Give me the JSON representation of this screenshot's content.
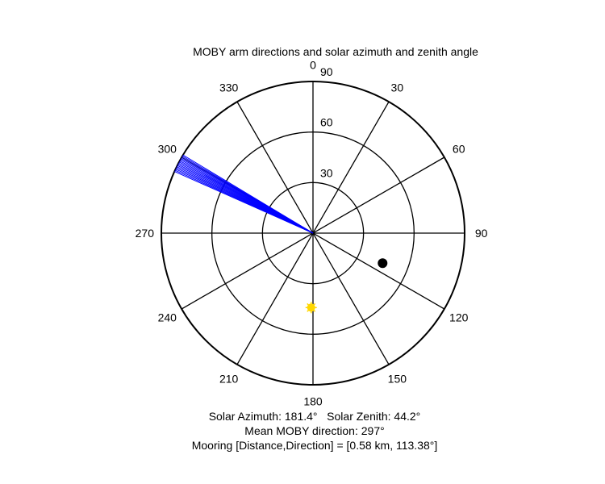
{
  "chart_data": {
    "type": "polar",
    "title": "MOBY arm directions and solar azimuth and zenith angle",
    "direction_ticks": [
      "0",
      "30",
      "60",
      "90",
      "120",
      "150",
      "180",
      "210",
      "240",
      "270",
      "300",
      "330"
    ],
    "direction_tick_values": [
      0,
      30,
      60,
      90,
      120,
      150,
      180,
      210,
      240,
      270,
      300,
      330
    ],
    "radius_ticks": [
      "30",
      "60",
      "90"
    ],
    "radius_tick_values": [
      30,
      60,
      90
    ],
    "rlim": [
      0,
      90
    ],
    "orientation": "clockwise from north",
    "arm_directions": {
      "color": "#0000ff",
      "length": 90,
      "values": [
        294.0,
        294.5,
        295.0,
        295.5,
        296.0,
        296.5,
        297.0,
        297.5,
        298.0,
        298.5,
        299.0,
        299.5,
        300.0,
        300.5,
        301.0
      ]
    },
    "sun": {
      "azimuth": 181.4,
      "zenith": 44.2,
      "color": "#ffd700"
    },
    "mooring": {
      "distance_km": 0.58,
      "direction": 113.38,
      "plot_radius": 45,
      "color": "#000000"
    }
  },
  "captions": {
    "line1": "Solar Azimuth: 181.4°   Solar Zenith: 44.2°",
    "line2": "Mean MOBY direction: 297°",
    "line3": "Mooring [Distance,Direction] = [0.58 km, 113.38°]"
  }
}
